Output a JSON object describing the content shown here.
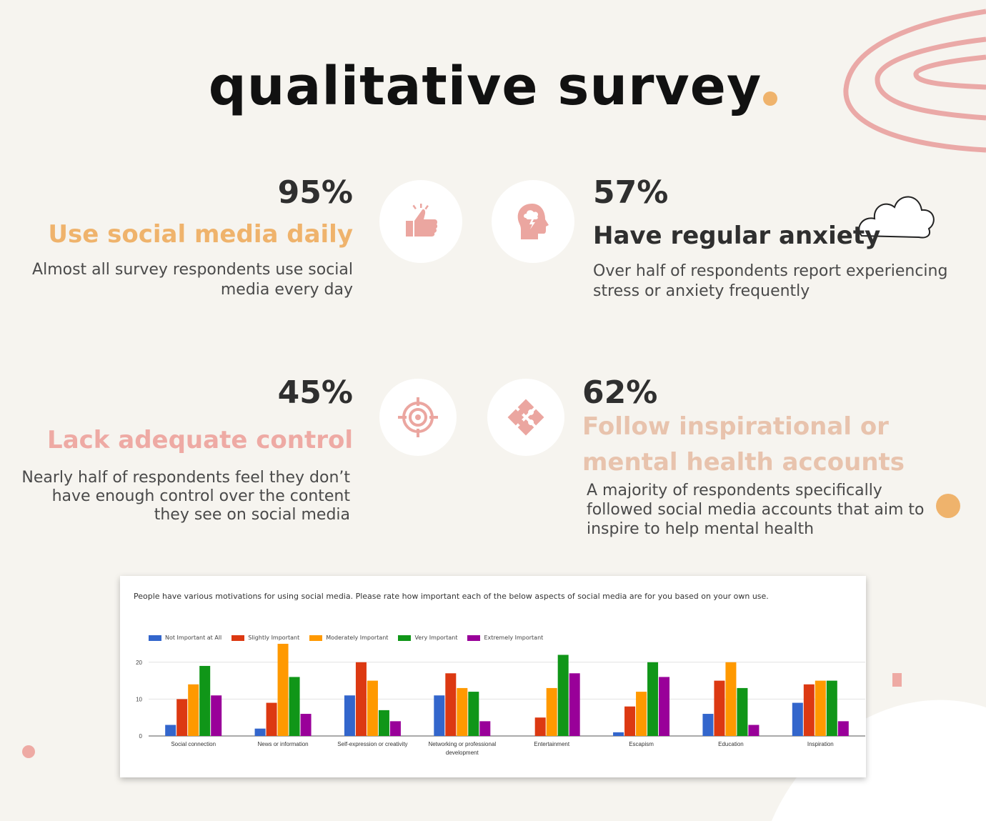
{
  "title": "qualitative survey",
  "stats": [
    {
      "percent": "95%",
      "headline": "Use social media daily",
      "description": [
        "Almost all survey respondents use social",
        "media every day"
      ],
      "icon": "thumbs-up-icon",
      "color": "#efb36c"
    },
    {
      "percent": "57%",
      "headline": "Have regular anxiety",
      "description": [
        "Over half of respondents report experiencing",
        "stress or anxiety frequently"
      ],
      "icon": "head-storm-icon",
      "color": "#2f2f2f"
    },
    {
      "percent": "45%",
      "headline": "Lack adequate control",
      "description": [
        "Nearly half of respondents feel they don’t",
        "have enough control over the content",
        "they see  on social media"
      ],
      "icon": "target-icon",
      "color": "#eeaaa4"
    },
    {
      "percent": "62%",
      "headline": [
        "Follow inspirational or",
        "mental health accounts"
      ],
      "description": [
        "A majority of respondents specifically",
        "followed social media accounts that aim to",
        "inspire to help mental health"
      ],
      "icon": "puzzle-icon",
      "color": "#e8c3ad"
    }
  ],
  "colors": {
    "accent_orange": "#efb36c",
    "accent_pink": "#eeaaa4",
    "icon_pink": "#eba6a0",
    "background": "#f6f4ef"
  },
  "chart_data": {
    "type": "bar",
    "title": "People have various motivations for using social media. Please rate how important each of the below aspects of social media are for you based on your own use.",
    "categories": [
      "Social connection",
      "News or information",
      "Self-expression or creativity",
      "Networking or professional development",
      "Entertainment",
      "Escapism",
      "Education",
      "Inspiration"
    ],
    "series": [
      {
        "name": "Not Important at All",
        "color": "#3366cc",
        "values": [
          3,
          2,
          11,
          11,
          0,
          1,
          6,
          9
        ]
      },
      {
        "name": "Slightly Important",
        "color": "#dc3912",
        "values": [
          10,
          9,
          20,
          17,
          5,
          8,
          15,
          14
        ]
      },
      {
        "name": "Moderately Important",
        "color": "#ff9900",
        "values": [
          14,
          25,
          15,
          13,
          13,
          12,
          20,
          15
        ]
      },
      {
        "name": "Very Important",
        "color": "#109618",
        "values": [
          19,
          16,
          7,
          12,
          22,
          20,
          13,
          15
        ]
      },
      {
        "name": "Extremely Important",
        "color": "#990099",
        "values": [
          11,
          6,
          4,
          4,
          17,
          16,
          3,
          4
        ]
      }
    ],
    "yticks": [
      0,
      10,
      20
    ],
    "ylim": [
      0,
      25
    ],
    "legend": "top-left",
    "grid": true
  }
}
